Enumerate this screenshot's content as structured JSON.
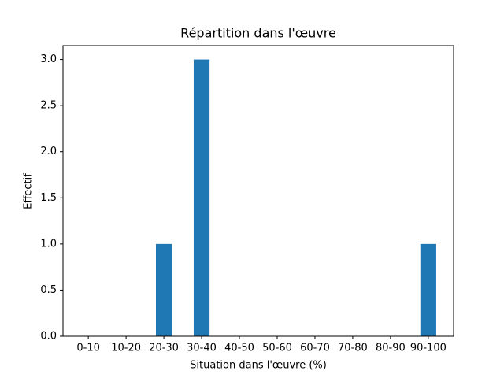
{
  "chart_data": {
    "type": "bar",
    "title": "Répartition dans l'œuvre",
    "xlabel": "Situation dans l'œuvre (%)",
    "ylabel": "Effectif",
    "categories": [
      "0-10",
      "10-20",
      "20-30",
      "30-40",
      "40-50",
      "50-60",
      "60-70",
      "70-80",
      "80-90",
      "90-100"
    ],
    "values": [
      0,
      0,
      1,
      3,
      0,
      0,
      0,
      0,
      0,
      1
    ],
    "color": "#1f77b4",
    "ylim": [
      0,
      3.15
    ],
    "yticks": [
      {
        "value": 0,
        "label": "0.0"
      },
      {
        "value": 0.5,
        "label": "0.5"
      },
      {
        "value": 1,
        "label": "1.0"
      },
      {
        "value": 1.5,
        "label": "1.5"
      },
      {
        "value": 2,
        "label": "2.0"
      },
      {
        "value": 2.5,
        "label": "2.5"
      },
      {
        "value": 3,
        "label": "3.0"
      }
    ],
    "grid": false
  }
}
